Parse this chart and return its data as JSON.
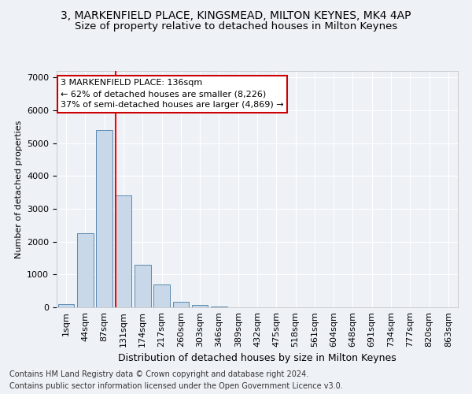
{
  "title": "3, MARKENFIELD PLACE, KINGSMEAD, MILTON KEYNES, MK4 4AP",
  "subtitle": "Size of property relative to detached houses in Milton Keynes",
  "xlabel": "Distribution of detached houses by size in Milton Keynes",
  "ylabel": "Number of detached properties",
  "bar_labels": [
    "1sqm",
    "44sqm",
    "87sqm",
    "131sqm",
    "174sqm",
    "217sqm",
    "260sqm",
    "303sqm",
    "346sqm",
    "389sqm",
    "432sqm",
    "475sqm",
    "518sqm",
    "561sqm",
    "604sqm",
    "648sqm",
    "691sqm",
    "734sqm",
    "777sqm",
    "820sqm",
    "863sqm"
  ],
  "bar_values": [
    100,
    2250,
    5400,
    3400,
    1300,
    700,
    175,
    80,
    30,
    5,
    2,
    1,
    0,
    0,
    0,
    0,
    0,
    0,
    0,
    0,
    0
  ],
  "bar_color": "#c8d8e8",
  "bar_edge_color": "#5a8ab0",
  "ylim": [
    0,
    7200
  ],
  "yticks": [
    0,
    1000,
    2000,
    3000,
    4000,
    5000,
    6000,
    7000
  ],
  "red_line_x": 2.57,
  "annotation_text": "3 MARKENFIELD PLACE: 136sqm\n← 62% of detached houses are smaller (8,226)\n37% of semi-detached houses are larger (4,869) →",
  "annotation_box_color": "#ffffff",
  "annotation_border_color": "#cc0000",
  "footer_line1": "Contains HM Land Registry data © Crown copyright and database right 2024.",
  "footer_line2": "Contains public sector information licensed under the Open Government Licence v3.0.",
  "background_color": "#eef2f7",
  "grid_color": "#ffffff",
  "title_fontsize": 10,
  "subtitle_fontsize": 9.5,
  "tick_fontsize": 8,
  "ylabel_fontsize": 8,
  "xlabel_fontsize": 9,
  "footer_fontsize": 7,
  "annotation_fontsize": 8
}
